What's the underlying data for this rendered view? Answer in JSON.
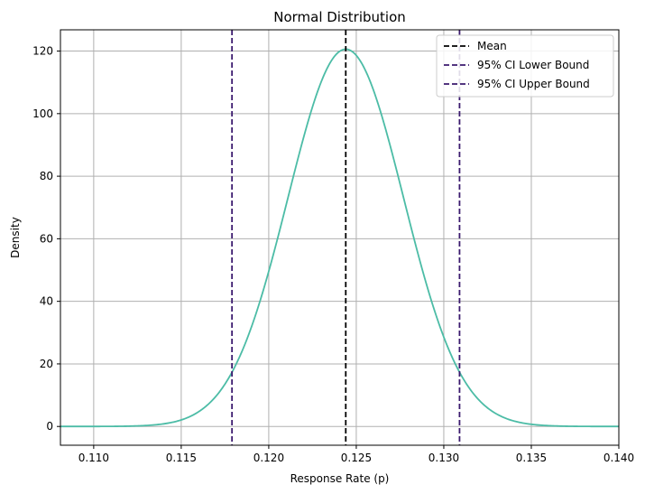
{
  "chart_data": {
    "type": "line",
    "title": "Normal Distribution",
    "xlabel": "Response Rate (p)",
    "ylabel": "Density",
    "xlim": [
      0.1081,
      0.14
    ],
    "ylim": [
      -6,
      126.8
    ],
    "xticks": [
      0.11,
      0.115,
      0.12,
      0.125,
      0.13,
      0.135,
      0.14
    ],
    "xtick_labels": [
      "0.110",
      "0.115",
      "0.120",
      "0.125",
      "0.130",
      "0.135",
      "0.140"
    ],
    "yticks": [
      0,
      20,
      40,
      60,
      80,
      100,
      120
    ],
    "ytick_labels": [
      "0",
      "20",
      "40",
      "60",
      "80",
      "100",
      "120"
    ],
    "grid": true,
    "legend_position": "top-right",
    "curve": {
      "distribution": "normal",
      "mean": 0.1244,
      "std": 0.0033,
      "peak_density": 120.6,
      "color": "#4cbca6"
    },
    "lines": [
      {
        "name": "Mean",
        "x": 0.1244,
        "color": "#000000",
        "style": "dashed"
      },
      {
        "name": "95% CI Lower Bound",
        "x": 0.1179,
        "color": "#3b1a6e",
        "style": "dashed"
      },
      {
        "name": "95% CI Upper Bound",
        "x": 0.1309,
        "color": "#3b1a6e",
        "style": "dashed"
      }
    ]
  }
}
